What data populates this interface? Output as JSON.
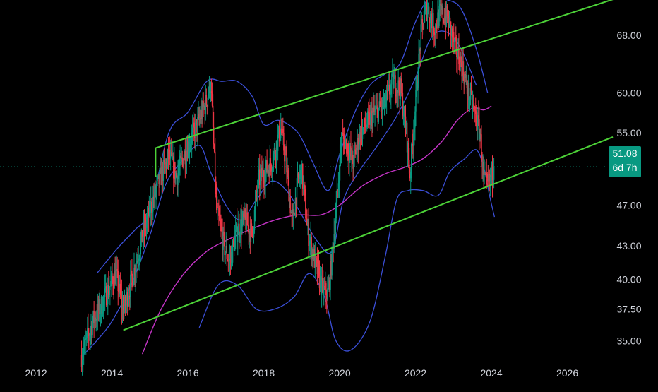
{
  "chart_data": {
    "type": "candlestick",
    "title": "",
    "xlabel": "",
    "ylabel": "",
    "x_range": [
      2011.05,
      2027.05
    ],
    "y_range": [
      33.8,
      73.4
    ],
    "y_scale": "log",
    "grid": false,
    "x_ticks": [
      "2012",
      "2014",
      "2016",
      "2018",
      "2020",
      "2022",
      "2024",
      "2026"
    ],
    "y_ticks": [
      "35.00",
      "37.50",
      "40.00",
      "43.00",
      "47.00",
      "51.08",
      "55.00",
      "60.00",
      "68.00"
    ],
    "current_price": {
      "label": "51.08",
      "value": 51.08,
      "countdown": "6d 7h"
    },
    "colors": {
      "up": "#089981",
      "down": "#f23645",
      "channel": "#4cd137",
      "bollinger": "#3b4fd8",
      "moving_average": "#c534c7",
      "price_line": "#089981",
      "axis_text": "#d1d4dc",
      "background": "#000000"
    },
    "channel": {
      "upper": [
        [
          2015.15,
          53.2
        ],
        [
          2027.2,
          73.5
        ]
      ],
      "lower": [
        [
          2014.3,
          35.8
        ],
        [
          2027.2,
          54.5
        ]
      ],
      "left_edge": [
        [
          2015.15,
          53.2
        ],
        [
          2015.15,
          50.0
        ]
      ]
    },
    "anchors": [
      [
        2013.2,
        33.9
      ],
      [
        2013.5,
        36.5
      ],
      [
        2013.75,
        38.0
      ],
      [
        2014.1,
        40.5
      ],
      [
        2014.3,
        37.2
      ],
      [
        2014.6,
        41.0
      ],
      [
        2014.85,
        44.5
      ],
      [
        2015.2,
        49.0
      ],
      [
        2015.5,
        52.3
      ],
      [
        2015.7,
        50.0
      ],
      [
        2016.0,
        53.5
      ],
      [
        2016.3,
        56.5
      ],
      [
        2016.5,
        59.0
      ],
      [
        2016.6,
        61.5
      ],
      [
        2016.75,
        46.5
      ],
      [
        2016.95,
        43.0
      ],
      [
        2017.1,
        41.5
      ],
      [
        2017.3,
        44.5
      ],
      [
        2017.5,
        45.5
      ],
      [
        2017.7,
        44.0
      ],
      [
        2017.85,
        49.5
      ],
      [
        2018.2,
        51.5
      ],
      [
        2018.45,
        55.5
      ],
      [
        2018.6,
        51.0
      ],
      [
        2018.75,
        45.0
      ],
      [
        2018.9,
        49.5
      ],
      [
        2019.0,
        50.5
      ],
      [
        2019.15,
        44.5
      ],
      [
        2019.35,
        41.5
      ],
      [
        2019.55,
        39.0
      ],
      [
        2019.7,
        38.8
      ],
      [
        2019.8,
        42.0
      ],
      [
        2019.95,
        48.5
      ],
      [
        2020.05,
        54.5
      ],
      [
        2020.2,
        53.5
      ],
      [
        2020.35,
        51.5
      ],
      [
        2020.55,
        55.0
      ],
      [
        2020.85,
        57.0
      ],
      [
        2021.2,
        58.5
      ],
      [
        2021.4,
        61.5
      ],
      [
        2021.6,
        60.5
      ],
      [
        2021.75,
        55.5
      ],
      [
        2021.85,
        50.0
      ],
      [
        2022.0,
        58.5
      ],
      [
        2022.15,
        68.5
      ],
      [
        2022.3,
        72.5
      ],
      [
        2022.5,
        69.0
      ],
      [
        2022.65,
        71.5
      ],
      [
        2022.85,
        70.5
      ],
      [
        2023.05,
        66.0
      ],
      [
        2023.2,
        64.0
      ],
      [
        2023.4,
        60.0
      ],
      [
        2023.55,
        57.5
      ],
      [
        2023.7,
        55.0
      ],
      [
        2023.8,
        49.5
      ],
      [
        2023.9,
        49.0
      ],
      [
        2024.0,
        50.0
      ],
      [
        2024.08,
        51.08
      ]
    ],
    "bollinger_upper": [
      [
        2013.6,
        40.5
      ],
      [
        2014.2,
        43.0
      ],
      [
        2014.6,
        44.5
      ],
      [
        2015.0,
        46.5
      ],
      [
        2015.5,
        55.0
      ],
      [
        2016.0,
        57.5
      ],
      [
        2016.5,
        61.5
      ],
      [
        2016.9,
        61.5
      ],
      [
        2017.3,
        61.5
      ],
      [
        2017.7,
        59.5
      ],
      [
        2018.0,
        56.0
      ],
      [
        2018.4,
        56.5
      ],
      [
        2018.9,
        55.0
      ],
      [
        2019.3,
        51.5
      ],
      [
        2019.7,
        48.5
      ],
      [
        2020.0,
        52.5
      ],
      [
        2020.4,
        57.5
      ],
      [
        2020.8,
        61.0
      ],
      [
        2021.2,
        62.5
      ],
      [
        2021.6,
        64.0
      ],
      [
        2022.0,
        70.0
      ],
      [
        2022.4,
        74.0
      ],
      [
        2022.8,
        73.5
      ],
      [
        2023.2,
        72.0
      ],
      [
        2023.6,
        66.0
      ],
      [
        2023.9,
        60.0
      ]
    ],
    "bollinger_lower": [
      [
        2016.3,
        36.0
      ],
      [
        2016.8,
        39.5
      ],
      [
        2017.3,
        39.5
      ],
      [
        2017.8,
        37.5
      ],
      [
        2018.3,
        37.5
      ],
      [
        2018.8,
        38.5
      ],
      [
        2019.2,
        40.5
      ],
      [
        2019.6,
        38.5
      ],
      [
        2019.9,
        35.0
      ],
      [
        2020.3,
        34.3
      ],
      [
        2020.8,
        36.5
      ],
      [
        2021.2,
        42.0
      ],
      [
        2021.5,
        47.5
      ],
      [
        2021.8,
        48.5
      ],
      [
        2022.2,
        48.5
      ],
      [
        2022.6,
        48.0
      ],
      [
        2022.9,
        50.5
      ],
      [
        2023.3,
        52.0
      ],
      [
        2023.6,
        53.0
      ],
      [
        2023.8,
        51.0
      ],
      [
        2023.95,
        48.0
      ],
      [
        2024.08,
        45.8
      ]
    ],
    "bollinger_mid": [
      [
        2013.2,
        33.8
      ],
      [
        2013.6,
        35.0
      ],
      [
        2014.0,
        36.5
      ],
      [
        2014.5,
        39.5
      ],
      [
        2015.0,
        44.0
      ],
      [
        2015.4,
        49.0
      ],
      [
        2015.8,
        51.5
      ],
      [
        2016.3,
        53.5
      ],
      [
        2016.6,
        50.5
      ],
      [
        2017.0,
        47.0
      ],
      [
        2017.4,
        45.5
      ],
      [
        2017.8,
        47.5
      ],
      [
        2018.2,
        49.5
      ],
      [
        2018.6,
        48.5
      ],
      [
        2019.0,
        46.0
      ],
      [
        2019.4,
        43.5
      ],
      [
        2019.8,
        42.5
      ],
      [
        2020.1,
        47.5
      ],
      [
        2020.5,
        50.5
      ],
      [
        2021.0,
        53.5
      ],
      [
        2021.5,
        57.0
      ],
      [
        2022.0,
        62.0
      ],
      [
        2022.4,
        67.5
      ],
      [
        2022.8,
        68.5
      ],
      [
        2023.2,
        66.0
      ],
      [
        2023.6,
        61.0
      ]
    ],
    "moving_average": [
      [
        2014.8,
        34.0
      ],
      [
        2015.3,
        37.5
      ],
      [
        2015.9,
        40.5
      ],
      [
        2016.5,
        42.5
      ],
      [
        2017.0,
        43.5
      ],
      [
        2017.6,
        44.5
      ],
      [
        2018.3,
        45.5
      ],
      [
        2018.9,
        46.0
      ],
      [
        2019.5,
        46.0
      ],
      [
        2020.0,
        47.0
      ],
      [
        2020.6,
        49.0
      ],
      [
        2021.2,
        50.3
      ],
      [
        2021.7,
        51.0
      ],
      [
        2022.2,
        52.0
      ],
      [
        2022.7,
        54.0
      ],
      [
        2023.1,
        56.5
      ],
      [
        2023.5,
        58.0
      ],
      [
        2023.8,
        57.8
      ]
    ],
    "extended_lines": {
      "moving_average_up_end": [
        [
          2023.8,
          57.8
        ],
        [
          2024.0,
          58.3
        ]
      ]
    }
  }
}
